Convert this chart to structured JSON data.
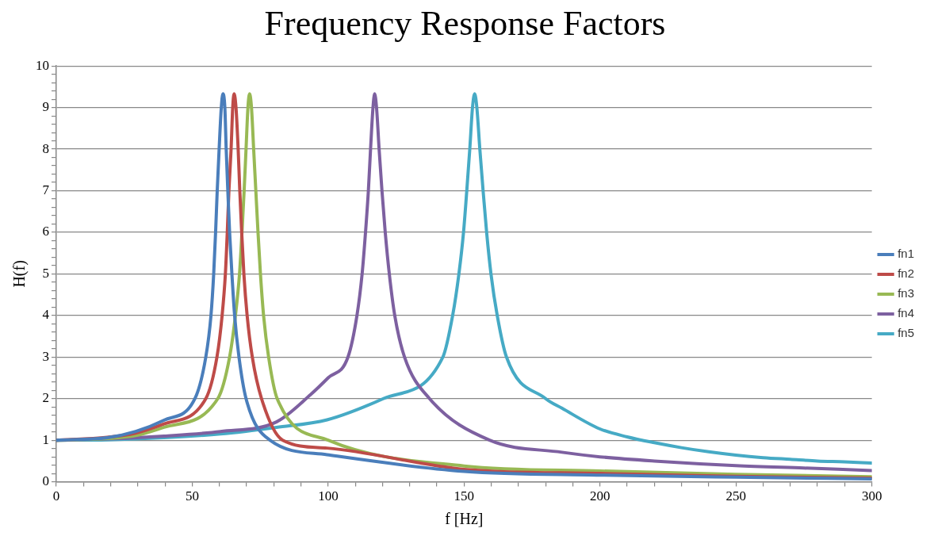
{
  "chart_data": {
    "type": "line",
    "title": "Frequency Response Factors",
    "xlabel": "f [Hz]",
    "ylabel": "H(f)",
    "xlim": [
      0,
      300
    ],
    "ylim": [
      0,
      10
    ],
    "xticks": [
      0,
      {
        "value": 10,
        "label": null
      },
      {
        "value": 20,
        "label": null
      },
      {
        "value": 30,
        "label": null
      },
      {
        "value": 40,
        "label": null
      },
      50,
      {
        "value": 60,
        "label": null
      },
      {
        "value": 70,
        "label": null
      },
      {
        "value": 80,
        "label": null
      },
      {
        "value": 90,
        "label": null
      },
      100,
      {
        "value": 110,
        "label": null
      },
      {
        "value": 120,
        "label": null
      },
      {
        "value": 130,
        "label": null
      },
      {
        "value": 140,
        "label": null
      },
      150,
      {
        "value": 160,
        "label": null
      },
      {
        "value": 170,
        "label": null
      },
      {
        "value": 180,
        "label": null
      },
      {
        "value": 190,
        "label": null
      },
      200,
      {
        "value": 210,
        "label": null
      },
      {
        "value": 220,
        "label": null
      },
      {
        "value": 230,
        "label": null
      },
      {
        "value": 240,
        "label": null
      },
      250,
      {
        "value": 260,
        "label": null
      },
      {
        "value": 270,
        "label": null
      },
      {
        "value": 280,
        "label": null
      },
      {
        "value": 290,
        "label": null
      },
      300
    ],
    "yticks": [
      0,
      {
        "value": 0.2,
        "label": null
      },
      {
        "value": 0.4,
        "label": null
      },
      {
        "value": 0.6,
        "label": null
      },
      {
        "value": 0.8,
        "label": null
      },
      1,
      {
        "value": 1.2,
        "label": null
      },
      {
        "value": 1.4,
        "label": null
      },
      {
        "value": 1.6,
        "label": null
      },
      {
        "value": 1.8,
        "label": null
      },
      2,
      {
        "value": 2.2,
        "label": null
      },
      {
        "value": 2.4,
        "label": null
      },
      {
        "value": 2.6,
        "label": null
      },
      {
        "value": 2.8,
        "label": null
      },
      3,
      {
        "value": 3.2,
        "label": null
      },
      {
        "value": 3.4,
        "label": null
      },
      {
        "value": 3.6,
        "label": null
      },
      {
        "value": 3.8,
        "label": null
      },
      4,
      {
        "value": 4.2,
        "label": null
      },
      {
        "value": 4.4,
        "label": null
      },
      {
        "value": 4.6,
        "label": null
      },
      {
        "value": 4.8,
        "label": null
      },
      5,
      {
        "value": 5.2,
        "label": null
      },
      {
        "value": 5.4,
        "label": null
      },
      {
        "value": 5.6,
        "label": null
      },
      {
        "value": 5.8,
        "label": null
      },
      6,
      {
        "value": 6.2,
        "label": null
      },
      {
        "value": 6.4,
        "label": null
      },
      {
        "value": 6.6,
        "label": null
      },
      {
        "value": 6.8,
        "label": null
      },
      7,
      {
        "value": 7.2,
        "label": null
      },
      {
        "value": 7.4,
        "label": null
      },
      {
        "value": 7.6,
        "label": null
      },
      {
        "value": 7.8,
        "label": null
      },
      8,
      {
        "value": 8.2,
        "label": null
      },
      {
        "value": 8.4,
        "label": null
      },
      {
        "value": 8.6,
        "label": null
      },
      {
        "value": 8.8,
        "label": null
      },
      9,
      {
        "value": 9.2,
        "label": null
      },
      {
        "value": 9.4,
        "label": null
      },
      {
        "value": 9.6,
        "label": null
      },
      {
        "value": 9.8,
        "label": null
      },
      10
    ],
    "grid": "y",
    "legend": "right",
    "marker": "none",
    "line_style": "solid",
    "series": [
      {
        "name": "fn1",
        "color": "#4a7ebb",
        "x": [
          0,
          18.75,
          29.2,
          39.6,
          51,
          55,
          56.9,
          57.9,
          58.6,
          59.2,
          59.9,
          60.7,
          61.3,
          62,
          62.5,
          63.1,
          63.75,
          64.6,
          65.6,
          67.2,
          69.8,
          78.6,
          99.6,
          150,
          200,
          250,
          300
        ],
        "values": [
          1,
          1.06,
          1.21,
          1.48,
          2,
          3,
          4,
          5,
          6,
          7,
          8,
          9,
          9.33,
          9,
          8,
          7,
          6,
          5,
          4,
          3,
          2,
          1,
          0.65,
          0.25,
          0.16,
          0.11,
          0.07
        ]
      },
      {
        "name": "fn2",
        "color": "#be4b48",
        "x": [
          0,
          18.75,
          29.2,
          39.6,
          55,
          59.1,
          61,
          62.2,
          62.9,
          63.5,
          64.3,
          64.9,
          65.4,
          66.1,
          66.9,
          67.5,
          68.2,
          69,
          70.2,
          72.1,
          75.5,
          83.3,
          99.6,
          150,
          200,
          250,
          300
        ],
        "values": [
          1,
          1.07,
          1.17,
          1.39,
          2,
          3,
          4,
          5,
          6,
          7,
          8,
          9,
          9.33,
          9,
          8,
          7,
          6,
          5,
          4,
          3,
          2,
          1,
          0.81,
          0.3,
          0.2,
          0.13,
          0.09
        ]
      },
      {
        "name": "fn3",
        "color": "#98b954",
        "x": [
          0,
          18.75,
          29.2,
          39.6,
          59.4,
          63.75,
          65.9,
          67.4,
          68.3,
          69.1,
          69.8,
          70.5,
          71.1,
          71.8,
          72.6,
          73.4,
          74.2,
          75.1,
          76.25,
          78.1,
          81.25,
          100,
          150,
          200,
          250,
          300
        ],
        "values": [
          1,
          1.04,
          1.11,
          1.31,
          2,
          3,
          4,
          5,
          6,
          7,
          8,
          9,
          9.33,
          9,
          8,
          7,
          6,
          5,
          4,
          3,
          2,
          1,
          0.38,
          0.26,
          0.18,
          0.12
        ]
      },
      {
        "name": "fn4",
        "color": "#7d60a0",
        "x": [
          0,
          18.75,
          39.6,
          60.4,
          81,
          93.6,
          100,
          107.3,
          110.6,
          112.5,
          113.75,
          114.8,
          115.6,
          116.5,
          117.1,
          117.8,
          118.75,
          119.8,
          121,
          122.5,
          124.5,
          128.1,
          137.3,
          159.4,
          186,
          200,
          220,
          250,
          275,
          300
        ],
        "values": [
          1,
          1.03,
          1.1,
          1.21,
          1.44,
          2.1,
          2.5,
          3,
          4,
          5,
          6,
          7,
          8,
          9,
          9.33,
          9,
          8,
          7,
          6,
          5,
          4,
          3,
          2,
          1,
          0.71,
          0.6,
          0.5,
          0.39,
          0.33,
          0.27
        ]
      },
      {
        "name": "fn5",
        "color": "#46aac5",
        "x": [
          0,
          18.75,
          39.6,
          60.4,
          81,
          99.6,
          120.3,
          142.2,
          145.8,
          148.1,
          149.8,
          151,
          152.1,
          153.1,
          153.9,
          154.7,
          155.8,
          157,
          158.3,
          159.9,
          162.2,
          165.6,
          180,
          186,
          200,
          210,
          220,
          230,
          240,
          250,
          260,
          270,
          280,
          290,
          300
        ],
        "values": [
          1,
          1.01,
          1.06,
          1.15,
          1.31,
          1.49,
          2,
          3,
          4,
          5,
          6,
          7,
          8,
          9,
          9.33,
          9,
          8,
          7,
          6,
          5,
          4,
          3,
          2,
          1.77,
          1.27,
          1.08,
          0.94,
          0.82,
          0.72,
          0.64,
          0.58,
          0.54,
          0.5,
          0.48,
          0.45
        ]
      }
    ]
  }
}
